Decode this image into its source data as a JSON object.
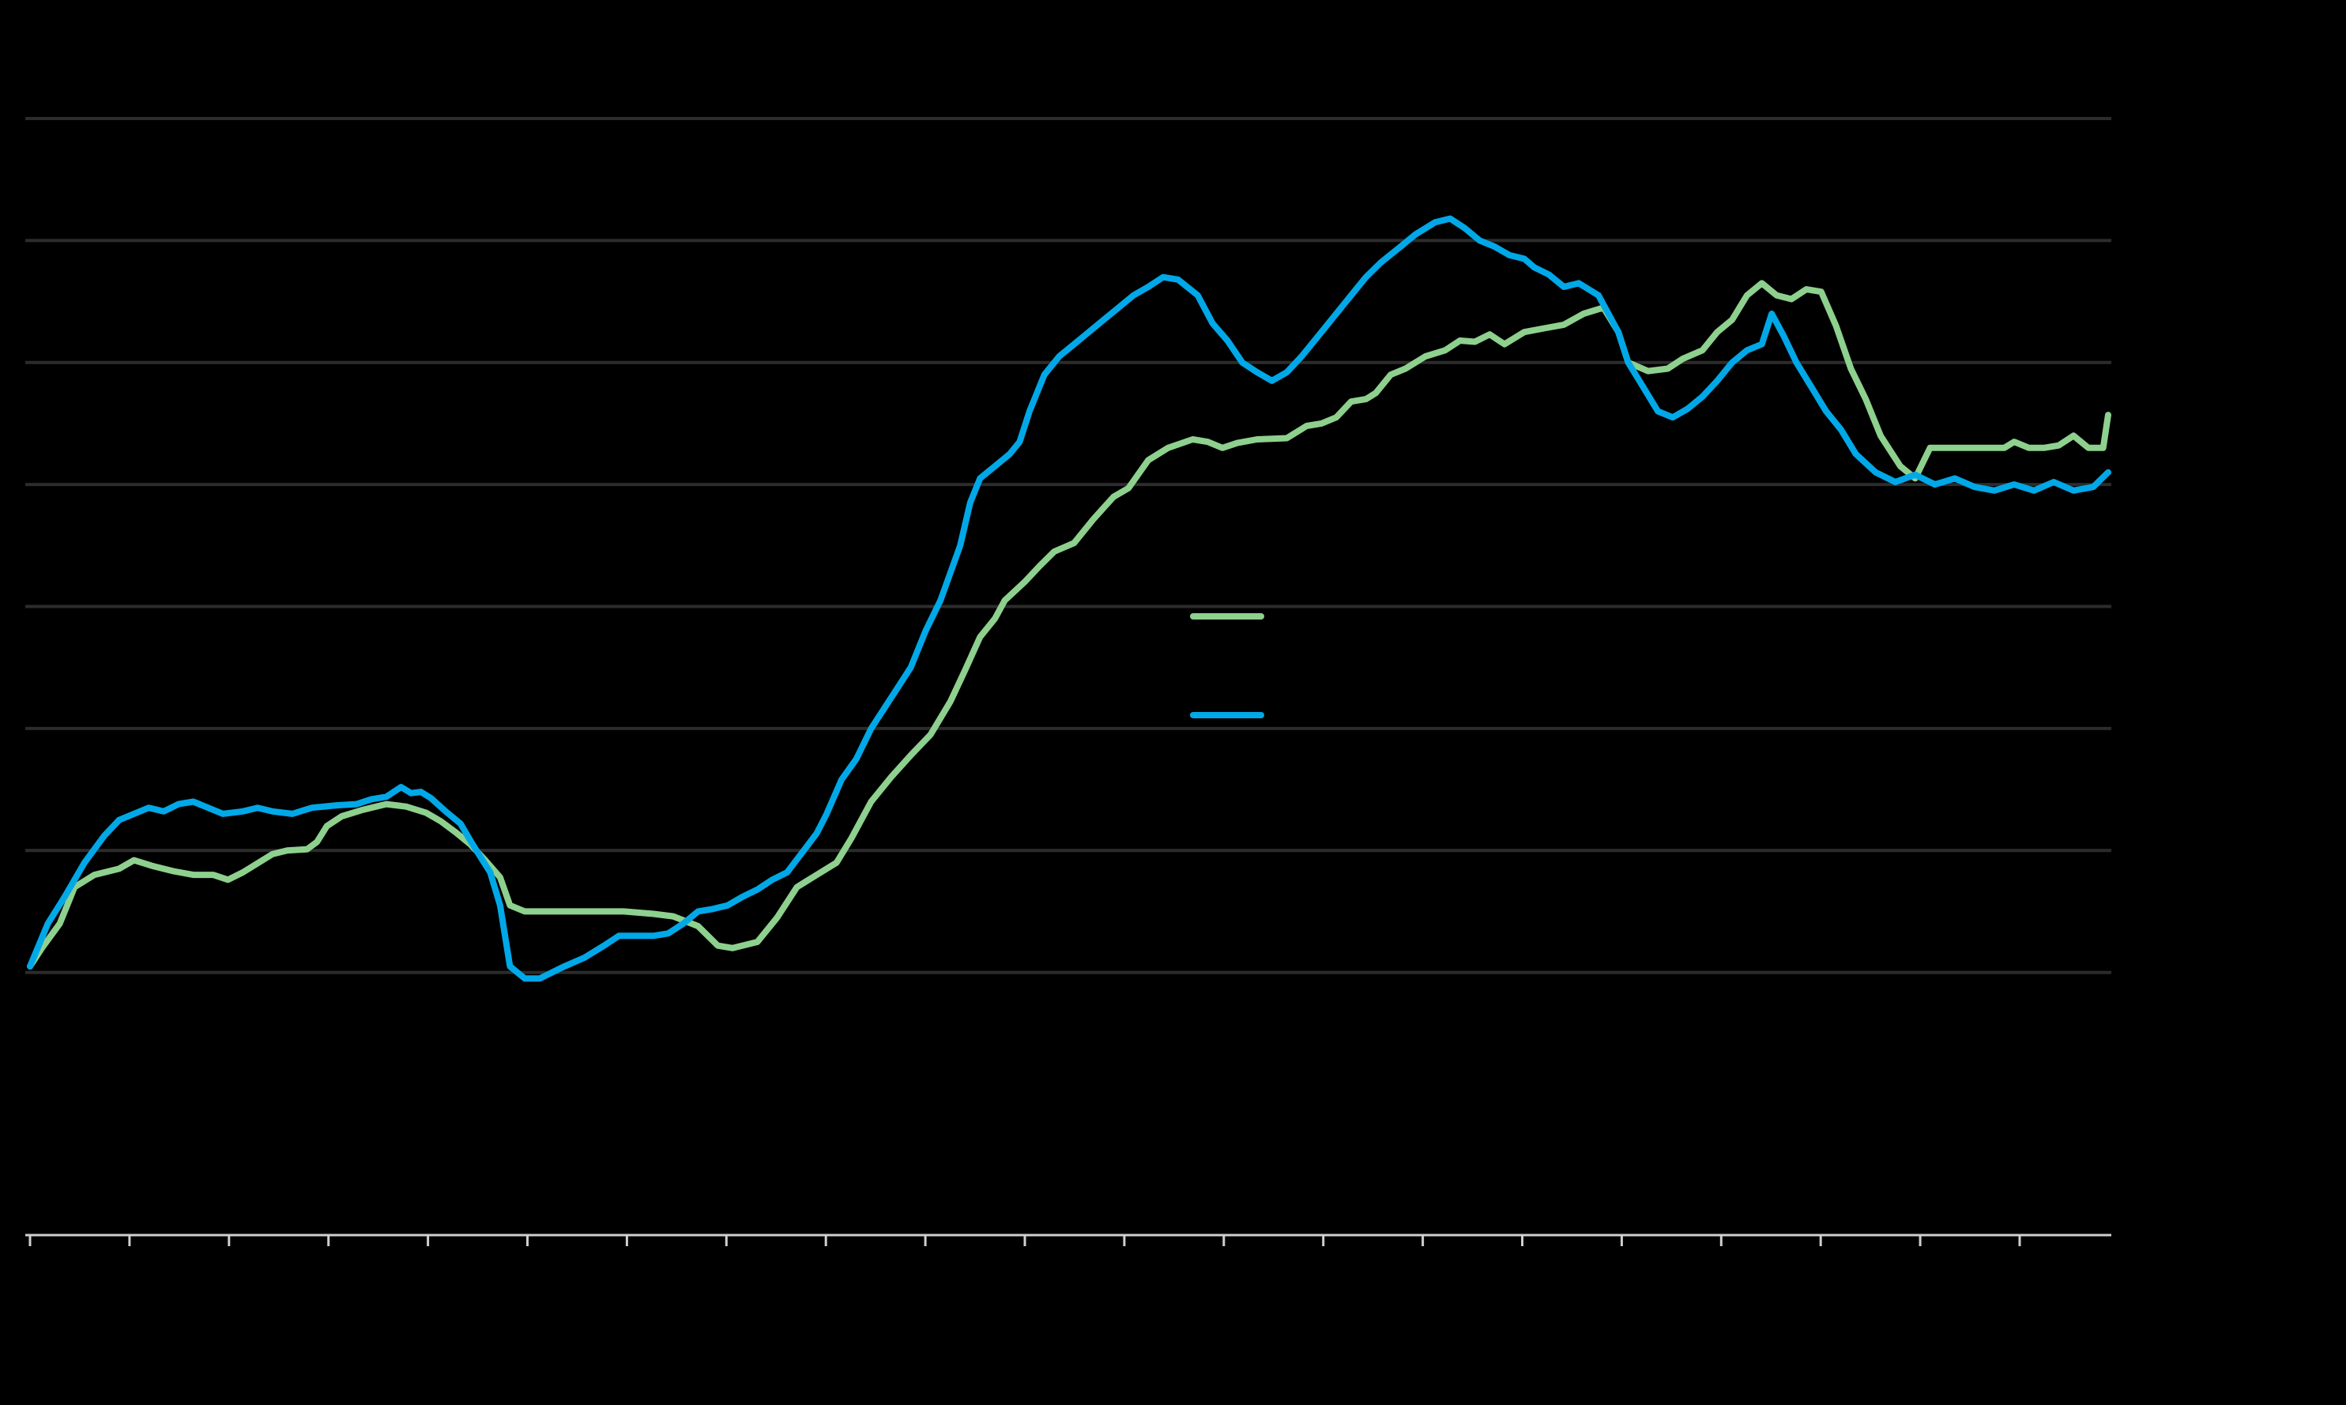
{
  "chart_data": {
    "type": "line",
    "title": "",
    "xlabel": "",
    "ylabel": "",
    "grid": true,
    "legend": "center-right",
    "x_range": [
      0,
      21
    ],
    "ylim": [
      0,
      8
    ],
    "series": [
      {
        "color": "#8ed08e",
        "points": [
          [
            0.0,
            1.05
          ],
          [
            0.12,
            1.2
          ],
          [
            0.3,
            1.4
          ],
          [
            0.45,
            1.7
          ],
          [
            0.65,
            1.8
          ],
          [
            0.9,
            1.85
          ],
          [
            1.05,
            1.92
          ],
          [
            1.25,
            1.87
          ],
          [
            1.45,
            1.83
          ],
          [
            1.65,
            1.8
          ],
          [
            1.85,
            1.8
          ],
          [
            2.0,
            1.76
          ],
          [
            2.15,
            1.82
          ],
          [
            2.45,
            1.97
          ],
          [
            2.6,
            2.0
          ],
          [
            2.8,
            2.01
          ],
          [
            2.9,
            2.07
          ],
          [
            3.0,
            2.2
          ],
          [
            3.15,
            2.28
          ],
          [
            3.35,
            2.33
          ],
          [
            3.6,
            2.38
          ],
          [
            3.8,
            2.36
          ],
          [
            4.0,
            2.31
          ],
          [
            4.15,
            2.24
          ],
          [
            4.3,
            2.15
          ],
          [
            4.45,
            2.05
          ],
          [
            4.6,
            1.92
          ],
          [
            4.75,
            1.78
          ],
          [
            4.85,
            1.55
          ],
          [
            5.0,
            1.5
          ],
          [
            5.3,
            1.5
          ],
          [
            5.7,
            1.5
          ],
          [
            6.0,
            1.5
          ],
          [
            6.3,
            1.48
          ],
          [
            6.5,
            1.46
          ],
          [
            6.75,
            1.38
          ],
          [
            6.95,
            1.22
          ],
          [
            7.1,
            1.2
          ],
          [
            7.35,
            1.25
          ],
          [
            7.55,
            1.45
          ],
          [
            7.75,
            1.7
          ],
          [
            7.95,
            1.8
          ],
          [
            8.15,
            1.9
          ],
          [
            8.3,
            2.1
          ],
          [
            8.5,
            2.4
          ],
          [
            8.7,
            2.6
          ],
          [
            8.9,
            2.78
          ],
          [
            9.1,
            2.95
          ],
          [
            9.3,
            3.22
          ],
          [
            9.45,
            3.48
          ],
          [
            9.6,
            3.75
          ],
          [
            9.75,
            3.9
          ],
          [
            9.85,
            4.05
          ],
          [
            10.05,
            4.2
          ],
          [
            10.2,
            4.33
          ],
          [
            10.35,
            4.45
          ],
          [
            10.55,
            4.52
          ],
          [
            10.75,
            4.72
          ],
          [
            10.95,
            4.9
          ],
          [
            11.1,
            4.97
          ],
          [
            11.3,
            5.2
          ],
          [
            11.5,
            5.3
          ],
          [
            11.75,
            5.37
          ],
          [
            11.9,
            5.35
          ],
          [
            12.05,
            5.3
          ],
          [
            12.2,
            5.34
          ],
          [
            12.4,
            5.37
          ],
          [
            12.7,
            5.38
          ],
          [
            12.9,
            5.48
          ],
          [
            13.05,
            5.5
          ],
          [
            13.2,
            5.55
          ],
          [
            13.35,
            5.68
          ],
          [
            13.5,
            5.7
          ],
          [
            13.6,
            5.75
          ],
          [
            13.75,
            5.9
          ],
          [
            13.9,
            5.95
          ],
          [
            14.1,
            6.05
          ],
          [
            14.3,
            6.1
          ],
          [
            14.45,
            6.18
          ],
          [
            14.6,
            6.17
          ],
          [
            14.75,
            6.23
          ],
          [
            14.9,
            6.15
          ],
          [
            15.1,
            6.25
          ],
          [
            15.3,
            6.28
          ],
          [
            15.5,
            6.31
          ],
          [
            15.7,
            6.4
          ],
          [
            15.9,
            6.45
          ],
          [
            16.05,
            6.25
          ],
          [
            16.15,
            6.0
          ],
          [
            16.35,
            5.93
          ],
          [
            16.55,
            5.95
          ],
          [
            16.7,
            6.03
          ],
          [
            16.9,
            6.1
          ],
          [
            17.05,
            6.25
          ],
          [
            17.2,
            6.35
          ],
          [
            17.35,
            6.55
          ],
          [
            17.5,
            6.65
          ],
          [
            17.65,
            6.55
          ],
          [
            17.8,
            6.52
          ],
          [
            17.95,
            6.6
          ],
          [
            18.1,
            6.58
          ],
          [
            18.25,
            6.3
          ],
          [
            18.4,
            5.95
          ],
          [
            18.55,
            5.7
          ],
          [
            18.7,
            5.4
          ],
          [
            18.9,
            5.15
          ],
          [
            19.05,
            5.05
          ],
          [
            19.2,
            5.3
          ],
          [
            19.45,
            5.3
          ],
          [
            19.7,
            5.3
          ],
          [
            19.95,
            5.3
          ],
          [
            20.05,
            5.35
          ],
          [
            20.2,
            5.3
          ],
          [
            20.35,
            5.3
          ],
          [
            20.5,
            5.32
          ],
          [
            20.65,
            5.4
          ],
          [
            20.8,
            5.3
          ],
          [
            20.95,
            5.3
          ],
          [
            21.0,
            5.57
          ]
        ]
      },
      {
        "color": "#00a8e8",
        "points": [
          [
            0.0,
            1.05
          ],
          [
            0.18,
            1.4
          ],
          [
            0.35,
            1.62
          ],
          [
            0.55,
            1.9
          ],
          [
            0.75,
            2.12
          ],
          [
            0.9,
            2.25
          ],
          [
            1.05,
            2.3
          ],
          [
            1.2,
            2.35
          ],
          [
            1.35,
            2.32
          ],
          [
            1.5,
            2.38
          ],
          [
            1.65,
            2.4
          ],
          [
            1.8,
            2.35
          ],
          [
            1.95,
            2.3
          ],
          [
            2.15,
            2.32
          ],
          [
            2.3,
            2.35
          ],
          [
            2.45,
            2.32
          ],
          [
            2.65,
            2.3
          ],
          [
            2.85,
            2.35
          ],
          [
            3.1,
            2.37
          ],
          [
            3.3,
            2.38
          ],
          [
            3.45,
            2.42
          ],
          [
            3.6,
            2.44
          ],
          [
            3.75,
            2.52
          ],
          [
            3.85,
            2.47
          ],
          [
            3.95,
            2.48
          ],
          [
            4.05,
            2.43
          ],
          [
            4.2,
            2.32
          ],
          [
            4.35,
            2.22
          ],
          [
            4.45,
            2.08
          ],
          [
            4.55,
            1.95
          ],
          [
            4.65,
            1.82
          ],
          [
            4.75,
            1.55
          ],
          [
            4.85,
            1.05
          ],
          [
            5.0,
            0.95
          ],
          [
            5.15,
            0.95
          ],
          [
            5.4,
            1.05
          ],
          [
            5.6,
            1.12
          ],
          [
            5.8,
            1.22
          ],
          [
            5.95,
            1.3
          ],
          [
            6.1,
            1.3
          ],
          [
            6.3,
            1.3
          ],
          [
            6.45,
            1.32
          ],
          [
            6.6,
            1.4
          ],
          [
            6.75,
            1.5
          ],
          [
            6.9,
            1.52
          ],
          [
            7.05,
            1.55
          ],
          [
            7.2,
            1.62
          ],
          [
            7.35,
            1.68
          ],
          [
            7.5,
            1.76
          ],
          [
            7.65,
            1.82
          ],
          [
            7.8,
            1.98
          ],
          [
            7.95,
            2.14
          ],
          [
            8.05,
            2.3
          ],
          [
            8.2,
            2.58
          ],
          [
            8.35,
            2.75
          ],
          [
            8.5,
            3.0
          ],
          [
            8.7,
            3.25
          ],
          [
            8.9,
            3.5
          ],
          [
            9.05,
            3.8
          ],
          [
            9.2,
            4.05
          ],
          [
            9.4,
            4.5
          ],
          [
            9.5,
            4.85
          ],
          [
            9.6,
            5.05
          ],
          [
            9.75,
            5.15
          ],
          [
            9.9,
            5.25
          ],
          [
            10.0,
            5.35
          ],
          [
            10.1,
            5.6
          ],
          [
            10.25,
            5.9
          ],
          [
            10.4,
            6.05
          ],
          [
            10.55,
            6.15
          ],
          [
            10.7,
            6.25
          ],
          [
            10.85,
            6.35
          ],
          [
            11.0,
            6.45
          ],
          [
            11.15,
            6.55
          ],
          [
            11.3,
            6.62
          ],
          [
            11.45,
            6.7
          ],
          [
            11.6,
            6.68
          ],
          [
            11.8,
            6.55
          ],
          [
            11.95,
            6.32
          ],
          [
            12.1,
            6.18
          ],
          [
            12.25,
            6.0
          ],
          [
            12.4,
            5.92
          ],
          [
            12.55,
            5.85
          ],
          [
            12.7,
            5.92
          ],
          [
            12.85,
            6.05
          ],
          [
            13.05,
            6.25
          ],
          [
            13.2,
            6.4
          ],
          [
            13.35,
            6.55
          ],
          [
            13.5,
            6.7
          ],
          [
            13.65,
            6.82
          ],
          [
            13.85,
            6.95
          ],
          [
            14.0,
            7.05
          ],
          [
            14.2,
            7.15
          ],
          [
            14.35,
            7.18
          ],
          [
            14.5,
            7.1
          ],
          [
            14.65,
            7.0
          ],
          [
            14.8,
            6.95
          ],
          [
            14.95,
            6.88
          ],
          [
            15.1,
            6.85
          ],
          [
            15.2,
            6.78
          ],
          [
            15.35,
            6.72
          ],
          [
            15.5,
            6.62
          ],
          [
            15.65,
            6.65
          ],
          [
            15.85,
            6.55
          ],
          [
            15.95,
            6.4
          ],
          [
            16.05,
            6.25
          ],
          [
            16.15,
            6.0
          ],
          [
            16.3,
            5.8
          ],
          [
            16.45,
            5.6
          ],
          [
            16.6,
            5.55
          ],
          [
            16.75,
            5.62
          ],
          [
            16.9,
            5.72
          ],
          [
            17.05,
            5.85
          ],
          [
            17.2,
            6.0
          ],
          [
            17.35,
            6.1
          ],
          [
            17.5,
            6.15
          ],
          [
            17.6,
            6.4
          ],
          [
            17.72,
            6.22
          ],
          [
            17.85,
            6.0
          ],
          [
            18.0,
            5.8
          ],
          [
            18.15,
            5.6
          ],
          [
            18.3,
            5.45
          ],
          [
            18.45,
            5.25
          ],
          [
            18.65,
            5.1
          ],
          [
            18.85,
            5.02
          ],
          [
            19.05,
            5.08
          ],
          [
            19.25,
            5.0
          ],
          [
            19.45,
            5.05
          ],
          [
            19.65,
            4.98
          ],
          [
            19.85,
            4.95
          ],
          [
            20.05,
            5.0
          ],
          [
            20.25,
            4.95
          ],
          [
            20.45,
            5.02
          ],
          [
            20.65,
            4.95
          ],
          [
            20.85,
            4.98
          ],
          [
            21.0,
            5.1
          ]
        ]
      }
    ],
    "x_ticks": 22,
    "legend_entries": [
      {
        "color": "#8ed08e"
      },
      {
        "color": "#00a8e8"
      }
    ]
  },
  "colors": {
    "background": "#000000",
    "gridline": "#2c2c2c",
    "axis": "#cfcfcf"
  }
}
